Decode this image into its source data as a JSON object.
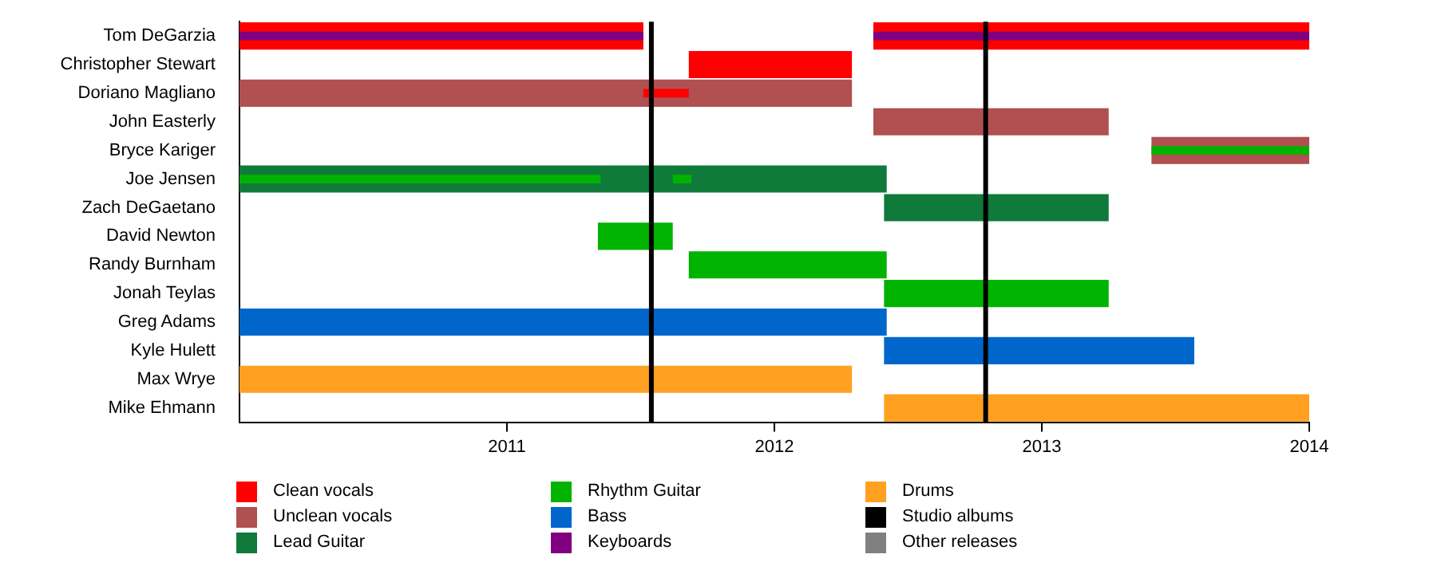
{
  "chart_data": {
    "type": "bar",
    "orientation": "horizontal",
    "categories": [
      "Tom DeGarzia",
      "Christopher Stewart",
      "Doriano Magliano",
      "John Easterly",
      "Bryce Kariger",
      "Joe Jensen",
      "Zach DeGaetano",
      "David Newton",
      "Randy Burnham",
      "Jonah Teylas",
      "Greg Adams",
      "Kyle Hulett",
      "Max Wrye",
      "Mike Ehmann"
    ],
    "xlim": [
      2010,
      2014
    ],
    "xticks": [
      2011,
      2012,
      2013,
      2014
    ],
    "grid": false,
    "legend": "bottom",
    "series": [
      {
        "name": "Clean vocals",
        "color": "#ff0000",
        "base": [
          2010,
          2011.68,
          null,
          null,
          null,
          null,
          null,
          null,
          null,
          null,
          null,
          null,
          null,
          null
        ],
        "values": [
          1.51,
          0.61,
          null,
          null,
          null,
          null,
          null,
          null,
          null,
          null,
          null,
          null,
          null,
          null
        ]
      },
      {
        "color": "#ff0000",
        "base": [
          2012.37,
          null,
          null,
          null,
          null,
          null,
          null,
          null,
          null,
          null,
          null,
          null,
          null,
          null
        ],
        "values": [
          1.63,
          null,
          null,
          null,
          null,
          null,
          null,
          null,
          null,
          null,
          null,
          null,
          null,
          null
        ]
      },
      {
        "name": "Unclean vocals",
        "color": "#b05050",
        "base": [
          null,
          null,
          2010,
          2012.37,
          2013.41,
          null,
          null,
          null,
          null,
          null,
          null,
          null,
          null,
          null
        ],
        "values": [
          null,
          null,
          2.29,
          0.88,
          0.59,
          null,
          null,
          null,
          null,
          null,
          null,
          null,
          null,
          null
        ]
      },
      {
        "name": "Lead Guitar",
        "color": "#0f7a3a",
        "base": [
          null,
          null,
          null,
          null,
          null,
          2010,
          2012.41,
          null,
          null,
          null,
          null,
          null,
          null,
          null
        ],
        "values": [
          null,
          null,
          null,
          null,
          null,
          2.42,
          0.84,
          null,
          null,
          null,
          null,
          null,
          null,
          null
        ]
      },
      {
        "name": "Rhythm Guitar",
        "color": "#00b300",
        "base": [
          null,
          null,
          null,
          null,
          null,
          null,
          null,
          2011.34,
          2011.68,
          2012.41,
          null,
          null,
          null,
          null
        ],
        "values": [
          null,
          null,
          null,
          null,
          null,
          null,
          null,
          0.28,
          0.74,
          0.84,
          null,
          null,
          null,
          null
        ]
      },
      {
        "name": "Bass",
        "color": "#0066cc",
        "base": [
          null,
          null,
          null,
          null,
          null,
          null,
          null,
          null,
          null,
          null,
          2010,
          2012.41,
          null,
          null
        ],
        "values": [
          null,
          null,
          null,
          null,
          null,
          null,
          null,
          null,
          null,
          null,
          2.42,
          1.16,
          null,
          null
        ]
      },
      {
        "name": "Keyboards",
        "color": "#800080",
        "base": [
          2010,
          null,
          null,
          null,
          null,
          null,
          null,
          null,
          null,
          null,
          null,
          null,
          null,
          null
        ],
        "values": [
          1.51,
          null,
          null,
          null,
          null,
          null,
          null,
          null,
          null,
          null,
          null,
          null,
          null,
          null
        ]
      },
      {
        "name": "Drums",
        "color": "#ffa020",
        "base": [
          null,
          null,
          null,
          null,
          null,
          null,
          null,
          null,
          null,
          null,
          null,
          null,
          2010,
          2012.41
        ],
        "values": [
          null,
          null,
          null,
          null,
          null,
          null,
          null,
          null,
          null,
          null,
          null,
          null,
          2.29,
          1.59
        ]
      },
      {
        "color": "#800080",
        "base": [
          2012.37,
          null,
          null,
          null,
          null,
          null,
          null,
          null,
          null,
          null,
          null,
          null,
          null,
          null
        ],
        "values": [
          1.63,
          null,
          null,
          null,
          null,
          null,
          null,
          null,
          null,
          null,
          null,
          null,
          null,
          null
        ]
      },
      {
        "color": "#ff0000",
        "base": [
          null,
          null,
          2011.51,
          null,
          null,
          null,
          null,
          null,
          null,
          null,
          null,
          null,
          null,
          null
        ],
        "values": [
          null,
          null,
          0.17,
          null,
          null,
          null,
          null,
          null,
          null,
          null,
          null,
          null,
          null,
          null
        ]
      },
      {
        "color": "#00b300",
        "base": [
          null,
          null,
          null,
          null,
          2013.41,
          2010,
          null,
          null,
          null,
          null,
          null,
          null,
          null,
          null
        ],
        "values": [
          null,
          null,
          null,
          null,
          0.59,
          1.35,
          null,
          null,
          null,
          null,
          null,
          null,
          null,
          null
        ]
      },
      {
        "color": "#00b300",
        "base": [
          null,
          null,
          null,
          null,
          null,
          2011.62,
          null,
          null,
          null,
          null,
          null,
          null,
          null,
          null
        ],
        "values": [
          null,
          null,
          null,
          null,
          null,
          0.07,
          null,
          null,
          null,
          null,
          null,
          null,
          null,
          null
        ]
      },
      {
        "name": "Other releases",
        "color": "#808080",
        "values": [
          null,
          null,
          null,
          null,
          null,
          null,
          null,
          null,
          null,
          null,
          null,
          null,
          null,
          null
        ]
      }
    ],
    "ref_lines": [
      {
        "axis": "x",
        "value": 2011.54,
        "label": "Studio albums",
        "color": "#000000"
      },
      {
        "axis": "x",
        "value": 2012.79,
        "color": "#000000"
      }
    ]
  }
}
